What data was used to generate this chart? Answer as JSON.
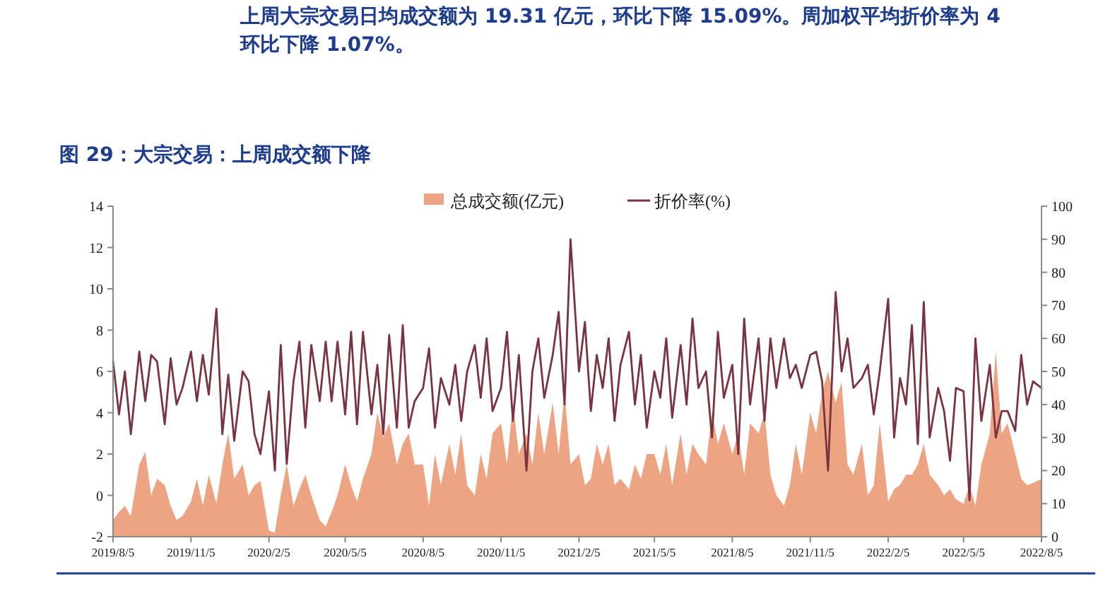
{
  "chart_data": {
    "type": "area",
    "title": "图 29：大宗交易：上周成交额下降",
    "annotations": [
      "上周大宗交易日均成交额为 19.31 亿元，环比下降 15.09%。周加权平均折价率为 4",
      "环比下降 1.07%。"
    ],
    "x": [
      "2019-08-05",
      "2019-08-12",
      "2019-08-19",
      "2019-08-26",
      "2019-09-05",
      "2019-09-12",
      "2019-09-19",
      "2019-09-26",
      "2019-10-05",
      "2019-10-12",
      "2019-10-19",
      "2019-10-26",
      "2019-11-05",
      "2019-11-12",
      "2019-11-19",
      "2019-11-26",
      "2019-12-05",
      "2019-12-12",
      "2019-12-19",
      "2019-12-26",
      "2020-01-05",
      "2020-01-12",
      "2020-01-19",
      "2020-01-26",
      "2020-02-05",
      "2020-02-12",
      "2020-02-19",
      "2020-02-26",
      "2020-03-05",
      "2020-03-12",
      "2020-03-19",
      "2020-03-26",
      "2020-04-05",
      "2020-04-12",
      "2020-04-19",
      "2020-04-26",
      "2020-05-05",
      "2020-05-12",
      "2020-05-19",
      "2020-05-26",
      "2020-06-05",
      "2020-06-12",
      "2020-06-19",
      "2020-06-26",
      "2020-07-05",
      "2020-07-12",
      "2020-07-19",
      "2020-07-26",
      "2020-08-05",
      "2020-08-12",
      "2020-08-19",
      "2020-08-26",
      "2020-09-05",
      "2020-09-12",
      "2020-09-19",
      "2020-09-26",
      "2020-10-05",
      "2020-10-12",
      "2020-10-19",
      "2020-10-26",
      "2020-11-05",
      "2020-11-12",
      "2020-11-19",
      "2020-11-26",
      "2020-12-05",
      "2020-12-12",
      "2020-12-19",
      "2020-12-26",
      "2021-01-05",
      "2021-01-12",
      "2021-01-19",
      "2021-01-26",
      "2021-02-05",
      "2021-02-12",
      "2021-02-19",
      "2021-02-26",
      "2021-03-05",
      "2021-03-12",
      "2021-03-19",
      "2021-03-26",
      "2021-04-05",
      "2021-04-12",
      "2021-04-19",
      "2021-04-26",
      "2021-05-05",
      "2021-05-12",
      "2021-05-19",
      "2021-05-26",
      "2021-06-05",
      "2021-06-12",
      "2021-06-19",
      "2021-06-26",
      "2021-07-05",
      "2021-07-12",
      "2021-07-19",
      "2021-07-26",
      "2021-08-05",
      "2021-08-12",
      "2021-08-19",
      "2021-08-26",
      "2021-09-05",
      "2021-09-12",
      "2021-09-19",
      "2021-09-26",
      "2021-10-05",
      "2021-10-12",
      "2021-10-19",
      "2021-10-26",
      "2021-11-05",
      "2021-11-12",
      "2021-11-19",
      "2021-11-26",
      "2021-12-05",
      "2021-12-12",
      "2021-12-19",
      "2021-12-26",
      "2022-01-05",
      "2022-01-12",
      "2022-01-19",
      "2022-01-26",
      "2022-02-05",
      "2022-02-12",
      "2022-02-19",
      "2022-02-26",
      "2022-03-05",
      "2022-03-12",
      "2022-03-19",
      "2022-03-26",
      "2022-04-05",
      "2022-04-12",
      "2022-04-19",
      "2022-04-26",
      "2022-05-05",
      "2022-05-12",
      "2022-05-19",
      "2022-05-26",
      "2022-06-05",
      "2022-06-12",
      "2022-06-19",
      "2022-06-26",
      "2022-07-05",
      "2022-07-12",
      "2022-07-19",
      "2022-07-26",
      "2022-08-05"
    ],
    "series": [
      {
        "name": "总成交额(亿元)",
        "color": "#eda483",
        "values": [
          -1.2,
          -0.8,
          -0.5,
          -1.0,
          1.5,
          2.1,
          0.0,
          0.8,
          0.5,
          -0.5,
          -1.2,
          -1.0,
          -0.3,
          0.8,
          -0.5,
          1.0,
          -0.4,
          1.5,
          3.0,
          0.8,
          1.5,
          0.0,
          0.5,
          0.7,
          -1.7,
          -1.8,
          0.0,
          1.5,
          -0.5,
          0.3,
          1.0,
          0.0,
          -1.2,
          -1.5,
          -0.8,
          0.0,
          1.5,
          0.5,
          -0.3,
          0.8,
          2.0,
          4.0,
          2.8,
          3.5,
          1.5,
          2.5,
          3.0,
          1.5,
          1.5,
          -0.5,
          2.0,
          0.5,
          2.5,
          1.0,
          3.0,
          0.5,
          0.0,
          2.0,
          0.8,
          3.0,
          3.5,
          1.5,
          4.5,
          2.0,
          3.0,
          1.5,
          4.0,
          2.0,
          4.5,
          2.0,
          5.0,
          1.5,
          2.0,
          0.5,
          0.8,
          2.5,
          1.5,
          2.5,
          0.5,
          0.8,
          0.3,
          1.5,
          0.8,
          2.0,
          2.0,
          1.0,
          2.5,
          0.5,
          3.0,
          1.0,
          2.5,
          2.0,
          1.5,
          4.0,
          2.5,
          3.5,
          2.0,
          3.0,
          1.0,
          3.5,
          3.0,
          4.0,
          1.0,
          0.0,
          -0.5,
          0.5,
          2.5,
          1.0,
          4.0,
          3.0,
          5.0,
          6.0,
          4.5,
          5.5,
          1.5,
          1.0,
          2.5,
          0.0,
          0.5,
          3.5,
          -0.3,
          0.3,
          0.5,
          1.0,
          1.0,
          1.5,
          2.5,
          1.0,
          0.5,
          0.0,
          0.3,
          -0.2,
          -0.4,
          0.5,
          -0.5,
          1.5,
          3.0,
          7.0,
          3.0,
          3.5,
          2.0,
          0.8,
          0.5,
          0.6,
          0.8
        ]
      },
      {
        "name": "折价率(%)",
        "type": "line",
        "axis": "y2",
        "color": "#7a3340",
        "values": [
          53,
          37,
          50,
          31,
          56,
          41,
          55,
          53,
          34,
          54,
          40,
          45,
          56,
          41,
          55,
          43,
          69,
          31,
          49,
          29,
          50,
          47,
          31,
          25,
          44,
          20,
          58,
          22,
          47,
          59,
          33,
          58,
          41,
          59,
          41,
          59,
          37,
          62,
          34,
          62,
          37,
          52,
          31,
          61,
          33,
          64,
          33,
          41,
          45,
          57,
          33,
          48,
          40,
          52,
          35,
          50,
          58,
          42,
          60,
          38,
          45,
          62,
          35,
          55,
          20,
          50,
          60,
          42,
          55,
          68,
          40,
          90,
          50,
          65,
          38,
          55,
          45,
          60,
          35,
          52,
          62,
          40,
          55,
          33,
          50,
          42,
          60,
          36,
          58,
          40,
          66,
          45,
          50,
          30,
          62,
          42,
          52,
          25,
          66,
          40,
          60,
          35,
          60,
          45,
          60,
          48,
          52,
          45,
          55,
          56,
          47,
          20,
          74,
          50,
          60,
          45,
          48,
          52,
          37,
          50,
          72,
          30,
          48,
          40,
          64,
          28,
          71,
          30,
          45,
          38,
          23,
          45,
          44,
          11,
          60,
          35,
          52,
          30,
          38,
          38,
          32,
          55,
          40,
          47,
          45
        ]
      }
    ],
    "xlim": [
      "2019-08-05",
      "2022-08-05"
    ],
    "xticks": [
      {
        "value": "2019-08-05",
        "label": "2019/8/5"
      },
      {
        "value": "2019-11-05",
        "label": "2019/11/5"
      },
      {
        "value": "2020-02-05",
        "label": "2020/2/5"
      },
      {
        "value": "2020-05-05",
        "label": "2020/5/5"
      },
      {
        "value": "2020-08-05",
        "label": "2020/8/5"
      },
      {
        "value": "2020-11-05",
        "label": "2020/11/5"
      },
      {
        "value": "2021-02-05",
        "label": "2021/2/5"
      },
      {
        "value": "2021-05-05",
        "label": "2021/5/5"
      },
      {
        "value": "2021-08-05",
        "label": "2021/8/5"
      },
      {
        "value": "2021-11-05",
        "label": "2021/11/5"
      },
      {
        "value": "2022-02-05",
        "label": "2022/2/5"
      },
      {
        "value": "2022-05-05",
        "label": "2022/5/5"
      },
      {
        "value": "2022-08-05",
        "label": "2022/8/5"
      }
    ],
    "ylim": [
      -2,
      14
    ],
    "yticks": [
      -2,
      0,
      2,
      4,
      6,
      8,
      10,
      12,
      14
    ],
    "y2lim": [
      0,
      100
    ],
    "y2ticks": [
      0,
      10,
      20,
      30,
      40,
      50,
      60,
      70,
      80,
      90,
      100
    ],
    "legend": "top",
    "marker": "none",
    "line_style": "solid"
  }
}
